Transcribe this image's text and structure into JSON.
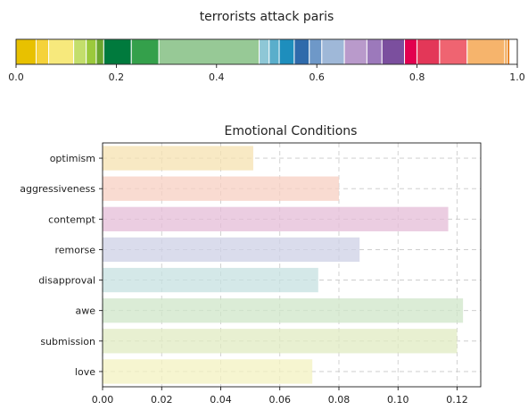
{
  "chart_data": [
    {
      "type": "bar",
      "orientation": "horizontal-stacked",
      "title": "terrorists attack paris",
      "xlim": [
        0,
        1
      ],
      "xticks": [
        0,
        0.2,
        0.4,
        0.6,
        0.8,
        1.0
      ],
      "xtick_labels": [
        "0.0",
        "0.2",
        "0.4",
        "0.6",
        "0.8",
        "1.0"
      ],
      "grid": false,
      "segments": [
        {
          "value": 0.04,
          "color": "#e8c100"
        },
        {
          "value": 0.025,
          "color": "#f5d23a"
        },
        {
          "value": 0.05,
          "color": "#f7e97c"
        },
        {
          "value": 0.025,
          "color": "#c3de6b"
        },
        {
          "value": 0.02,
          "color": "#9bc93c"
        },
        {
          "value": 0.015,
          "color": "#6aa52f"
        },
        {
          "value": 0.055,
          "color": "#007a3d"
        },
        {
          "value": 0.055,
          "color": "#34a04b"
        },
        {
          "value": 0.2,
          "color": "#97c996"
        },
        {
          "value": 0.02,
          "color": "#8ec7d6"
        },
        {
          "value": 0.02,
          "color": "#5aaecb"
        },
        {
          "value": 0.03,
          "color": "#1e8ebd"
        },
        {
          "value": 0.03,
          "color": "#2f6aab"
        },
        {
          "value": 0.025,
          "color": "#6e98c8"
        },
        {
          "value": 0.045,
          "color": "#9fb8d8"
        },
        {
          "value": 0.045,
          "color": "#b99acb"
        },
        {
          "value": 0.03,
          "color": "#9c79bb"
        },
        {
          "value": 0.045,
          "color": "#7b4f9e"
        },
        {
          "value": 0.025,
          "color": "#e2004f"
        },
        {
          "value": 0.045,
          "color": "#e33758"
        },
        {
          "value": 0.055,
          "color": "#ef6471"
        },
        {
          "value": 0.075,
          "color": "#f6b46c"
        },
        {
          "value": 0.005,
          "color": "#ef9a3a"
        },
        {
          "value": 0.005,
          "color": "#e57a14"
        }
      ]
    },
    {
      "type": "bar",
      "orientation": "horizontal",
      "title": "Emotional Conditions",
      "categories": [
        "optimism",
        "aggressiveness",
        "contempt",
        "remorse",
        "disapproval",
        "awe",
        "submission",
        "love"
      ],
      "values": [
        0.051,
        0.08,
        0.117,
        0.087,
        0.073,
        0.122,
        0.12,
        0.071
      ],
      "colors": [
        "#f5e2b0",
        "#f7cfc2",
        "#e4bcd7",
        "#cdd0e6",
        "#c6e0e0",
        "#cfe5c8",
        "#e0ebc2",
        "#f3f2c0"
      ],
      "xlim": [
        0,
        0.128
      ],
      "xticks": [
        0,
        0.02,
        0.04,
        0.06,
        0.08,
        0.1,
        0.12
      ],
      "xtick_labels": [
        "0.00",
        "0.02",
        "0.04",
        "0.06",
        "0.08",
        "0.10",
        "0.12"
      ],
      "grid": true
    }
  ]
}
